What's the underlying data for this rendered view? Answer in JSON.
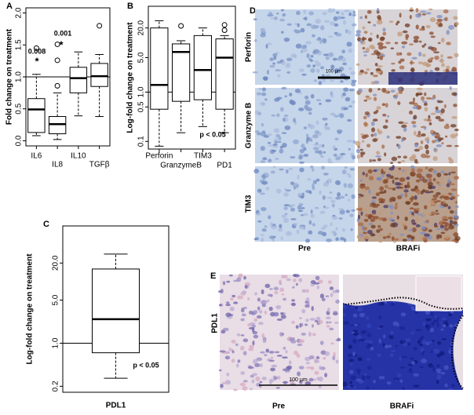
{
  "chart_data": [
    {
      "type": "box",
      "panel": "A",
      "ylabel": "Fold change on treatment",
      "categories": [
        "IL6",
        "IL8",
        "IL10",
        "TGFβ"
      ],
      "boxes": [
        {
          "low": 0.08,
          "q1": 0.13,
          "median": 0.49,
          "q3": 0.66,
          "high": 1.04,
          "outliers": [
            1.45
          ]
        },
        {
          "low": 0.02,
          "q1": 0.11,
          "median": 0.26,
          "q3": 0.38,
          "high": 0.75,
          "outliers": [
            0.86,
            1.26,
            1.51
          ]
        },
        {
          "low": 0.39,
          "q1": 0.75,
          "median": 0.98,
          "q3": 1.15,
          "high": 1.39,
          "outliers": []
        },
        {
          "low": 0.38,
          "q1": 0.85,
          "median": 1.01,
          "q3": 1.21,
          "high": 1.35,
          "outliers": [
            1.8
          ]
        }
      ],
      "ylim": [
        -0.08,
        2.08
      ],
      "yticks": [
        {
          "value": 0,
          "label": "0.0"
        },
        {
          "value": 0.5,
          "label": "0.5"
        },
        {
          "value": 1,
          "label": "1.0"
        },
        {
          "value": 1.5,
          "label": "1.5"
        },
        {
          "value": 2,
          "label": "2.0"
        }
      ],
      "reference_line": 1,
      "annotations": [
        "0.008",
        "*",
        "0.001",
        "*"
      ]
    },
    {
      "type": "box",
      "panel": "B",
      "ylabel": "Log-fold change on treatment",
      "log_scale": true,
      "categories": [
        "Perforin",
        "GranzymeB",
        "TIM3",
        "PD1"
      ],
      "boxes": [
        {
          "low": 0.08,
          "q1": 0.45,
          "median": 1.4,
          "q3": 20,
          "high": 28,
          "outliers": []
        },
        {
          "low": 0.15,
          "q1": 0.65,
          "median": 6.5,
          "q3": 9.5,
          "high": 11,
          "outliers": [
            22
          ]
        },
        {
          "low": 0.2,
          "q1": 0.7,
          "median": 2.8,
          "q3": 14,
          "high": 20,
          "outliers": []
        },
        {
          "low": 0.15,
          "q1": 0.45,
          "median": 5,
          "q3": 12,
          "high": 14,
          "outliers": [
            18,
            23
          ]
        }
      ],
      "ylim": [
        0.07,
        55
      ],
      "yticks": [
        0.1,
        0.5,
        {
          "value": 1,
          "label": "1.0"
        },
        {
          "value": 5,
          "label": "5.0"
        },
        {
          "value": 20,
          "label": "20.0"
        }
      ],
      "reference_line": 1,
      "annotations": [
        "p < 0.05"
      ]
    },
    {
      "type": "box",
      "panel": "C",
      "ylabel": "Log-fold change on treatment",
      "log_scale": true,
      "categories": [
        "PDL1"
      ],
      "boxes": [
        {
          "low": 0.27,
          "q1": 0.7,
          "median": 2.45,
          "q3": 16,
          "high": 28,
          "outliers": []
        }
      ],
      "ylim": [
        0.16,
        80
      ],
      "yticks": [
        0.2,
        {
          "value": 1,
          "label": "1.0"
        },
        {
          "value": 5,
          "label": "5.0"
        },
        {
          "value": 20,
          "label": "20.0"
        }
      ],
      "reference_line": 1,
      "annotations": [
        "p < 0.05"
      ]
    }
  ],
  "micrographs": {
    "D": {
      "panel": "D",
      "rows": [
        "Perforin",
        "Granzyme B",
        "TIM3"
      ],
      "columns": [
        "Pre",
        "BRAFi"
      ],
      "scale_bar": "100 µm"
    },
    "E": {
      "panel": "E",
      "rows": [
        "PDL1"
      ],
      "columns": [
        "Pre",
        "BRAFi"
      ],
      "scale_bar": "100 µm"
    }
  }
}
